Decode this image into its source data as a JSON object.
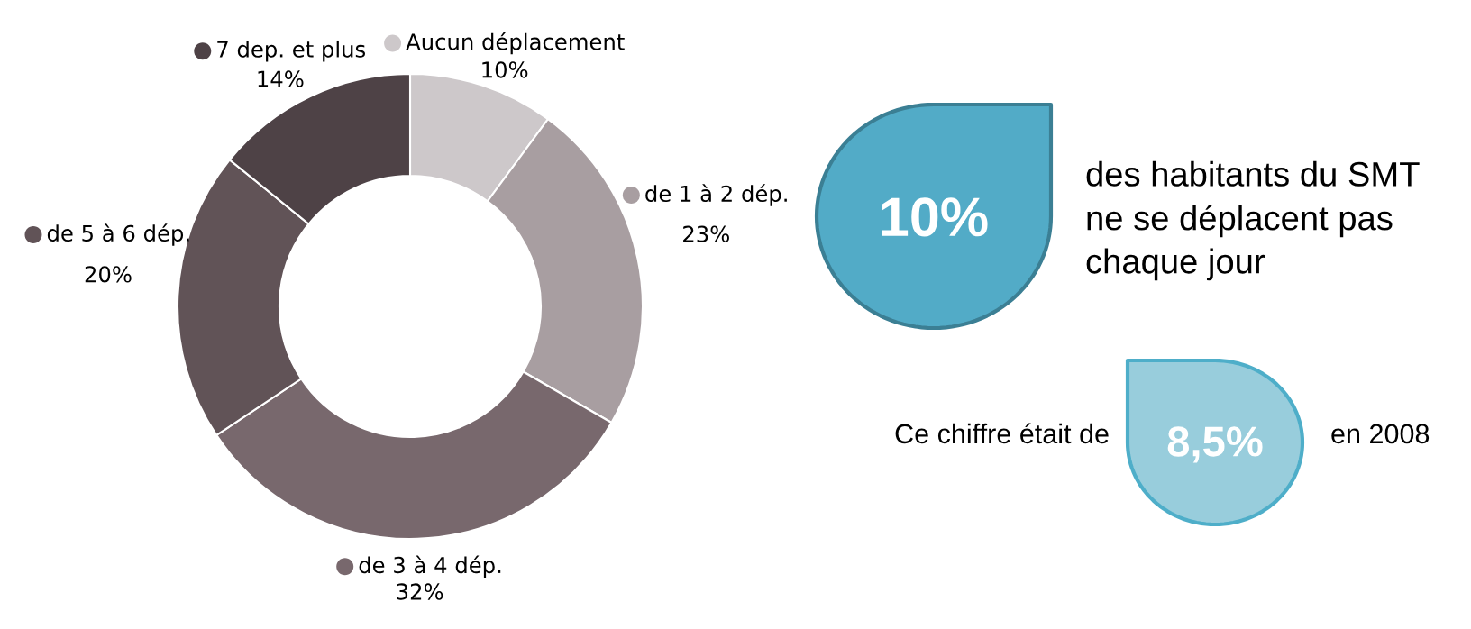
{
  "chart_data": [
    {
      "type": "donut",
      "categories": [
        "Aucun déplacement",
        "de 1 à 2 dép.",
        "de 3 à 4 dép.",
        "de 5 à 6 dép.",
        "7 dep. et plus"
      ],
      "values": [
        10,
        23,
        32,
        20,
        14
      ],
      "colors": [
        "#cdc8ca",
        "#a89ea1",
        "#78686d",
        "#615357",
        "#4e4246"
      ],
      "value_labels": [
        "10%",
        "23%",
        "32%",
        "20%",
        "14%"
      ],
      "legend": "top left"
    },
    {
      "type": "other",
      "annotations": [
        "10%",
        "des habitants du SMT\nne se déplacent pas\nchaque jour",
        "Ce chiffre était de",
        "8,5%",
        "en 2008"
      ]
    }
  ]
}
